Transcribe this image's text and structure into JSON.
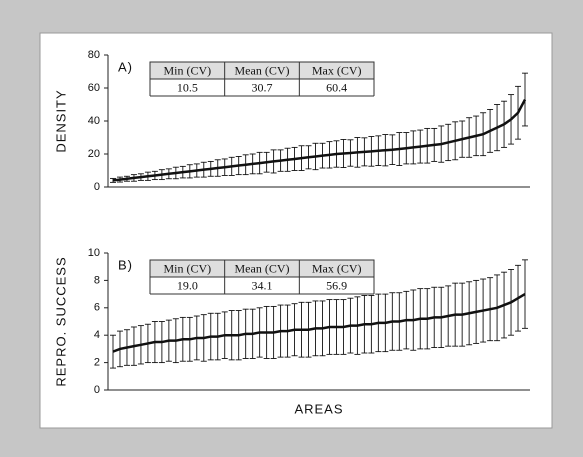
{
  "chart_data": [
    {
      "type": "errorbar",
      "panel_label": "A)",
      "ylabel": "DENSITY",
      "ylim": [
        0,
        80
      ],
      "yticks": [
        0,
        20,
        40,
        60,
        80
      ],
      "color": "#111111",
      "stats": {
        "headers": [
          "Min (CV)",
          "Mean (CV)",
          "Max (CV)"
        ],
        "values": [
          10.5,
          30.7,
          60.4
        ],
        "value_labels": [
          "10.5",
          "30.7",
          "60.4"
        ]
      },
      "values": [
        4,
        4.5,
        5,
        5.5,
        6,
        6.5,
        7,
        7.5,
        8,
        8.5,
        9,
        9.5,
        10,
        10.5,
        11,
        11.5,
        12,
        12.5,
        13,
        13.5,
        14,
        14.5,
        15,
        15.5,
        16,
        16.5,
        17,
        17.5,
        18,
        18.5,
        19,
        19.5,
        20,
        20.3,
        20.6,
        21,
        21.3,
        21.6,
        22,
        22.3,
        22.6,
        23,
        23.5,
        24,
        24.5,
        25,
        25.5,
        26,
        27,
        28,
        29,
        30,
        31,
        32,
        34,
        36,
        38,
        41,
        45,
        53
      ],
      "errors": [
        1.2,
        1.5,
        1.5,
        2,
        2,
        2.5,
        2.5,
        3,
        3,
        3.5,
        3.5,
        4,
        4,
        4.5,
        4.5,
        5,
        5,
        5.5,
        5.5,
        6,
        6,
        6.5,
        6,
        7,
        6.5,
        7,
        7,
        7.5,
        7,
        8,
        7.5,
        8,
        8,
        8.5,
        8,
        9,
        8.5,
        9,
        9,
        9.5,
        9,
        10,
        9.5,
        10,
        10,
        10.5,
        10,
        11,
        11,
        11.5,
        11,
        12,
        12,
        13,
        13,
        14,
        14,
        15,
        16,
        16
      ]
    },
    {
      "type": "errorbar",
      "panel_label": "B)",
      "ylabel": "REPRO. SUCCESS",
      "xlabel": "AREAS",
      "ylim": [
        0,
        10
      ],
      "yticks": [
        0,
        2,
        4,
        6,
        8,
        10
      ],
      "color": "#111111",
      "stats": {
        "headers": [
          "Min (CV)",
          "Mean (CV)",
          "Max (CV)"
        ],
        "values": [
          19,
          34.1,
          56.9
        ],
        "value_labels": [
          "19.0",
          "34.1",
          "56.9"
        ]
      },
      "values": [
        2.8,
        3.0,
        3.1,
        3.2,
        3.3,
        3.4,
        3.5,
        3.5,
        3.6,
        3.6,
        3.7,
        3.7,
        3.8,
        3.8,
        3.9,
        3.9,
        4.0,
        4.0,
        4.0,
        4.1,
        4.1,
        4.2,
        4.2,
        4.2,
        4.3,
        4.3,
        4.4,
        4.4,
        4.4,
        4.5,
        4.5,
        4.6,
        4.6,
        4.6,
        4.7,
        4.7,
        4.8,
        4.8,
        4.9,
        4.9,
        5.0,
        5.0,
        5.1,
        5.1,
        5.2,
        5.2,
        5.3,
        5.3,
        5.4,
        5.5,
        5.5,
        5.6,
        5.7,
        5.8,
        5.9,
        6.0,
        6.2,
        6.4,
        6.7,
        7.0
      ],
      "errors": [
        1.2,
        1.3,
        1.3,
        1.4,
        1.4,
        1.4,
        1.5,
        1.5,
        1.5,
        1.6,
        1.6,
        1.6,
        1.6,
        1.7,
        1.7,
        1.7,
        1.7,
        1.8,
        1.8,
        1.8,
        1.8,
        1.8,
        1.9,
        1.9,
        1.9,
        1.9,
        1.9,
        2.0,
        2.0,
        2.0,
        2.0,
        2.0,
        2.0,
        2.0,
        2.0,
        2.1,
        2.1,
        2.1,
        2.1,
        2.1,
        2.1,
        2.1,
        2.1,
        2.2,
        2.2,
        2.2,
        2.2,
        2.2,
        2.2,
        2.3,
        2.3,
        2.3,
        2.3,
        2.3,
        2.3,
        2.4,
        2.4,
        2.4,
        2.4,
        2.5
      ]
    }
  ]
}
